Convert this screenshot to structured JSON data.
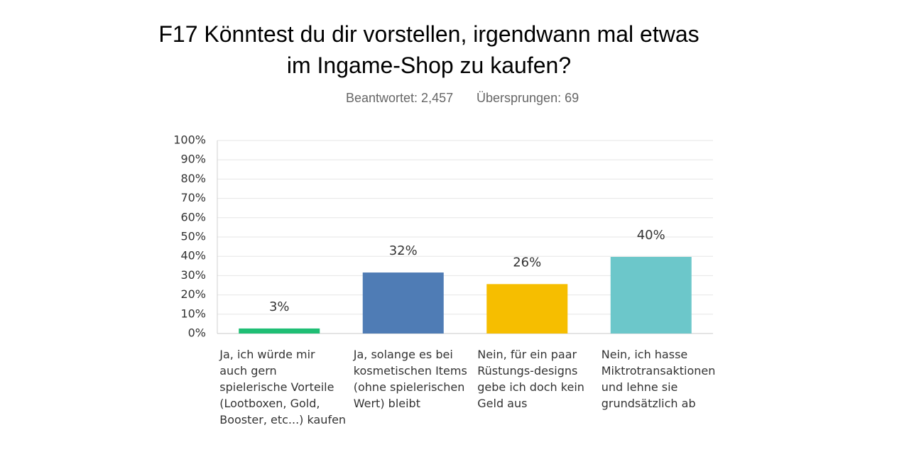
{
  "chart_data": {
    "type": "bar",
    "title": "F17 Könntest du dir vorstellen, irgendwann mal etwas im Ingame-Shop zu kaufen?",
    "answered": "Beantwortet: 2,457",
    "skipped": "Übersprungen: 69",
    "categories": [
      "Ja, ich würde mir auch gern spielerische Vorteile (Lootboxen, Gold, Booster, etc...) kaufen",
      "Ja, solange es bei kosmetischen Items (ohne spielerischen Wert) bleibt",
      "Nein, für ein paar Rüstungs-designs gebe ich doch kein Geld aus",
      "Nein, ich hasse Miktrotransaktionen und lehne sie grundsätzlich ab"
    ],
    "values": [
      2.6,
      31.6,
      25.6,
      39.7
    ],
    "value_labels": [
      "3%",
      "32%",
      "26%",
      "40%"
    ],
    "colors": [
      "#1fbe74",
      "#4f7cb5",
      "#f6be00",
      "#6cc7ca"
    ],
    "ylim": [
      0,
      100
    ],
    "yticks": [
      {
        "value": 0,
        "label": "0%"
      },
      {
        "value": 10,
        "label": "10%"
      },
      {
        "value": 20,
        "label": "20%"
      },
      {
        "value": 30,
        "label": "30%"
      },
      {
        "value": 40,
        "label": "40%"
      },
      {
        "value": 50,
        "label": "50%"
      },
      {
        "value": 60,
        "label": "60%"
      },
      {
        "value": 70,
        "label": "70%"
      },
      {
        "value": 80,
        "label": "80%"
      },
      {
        "value": 90,
        "label": "90%"
      },
      {
        "value": 100,
        "label": "100%"
      }
    ],
    "grid": true
  }
}
